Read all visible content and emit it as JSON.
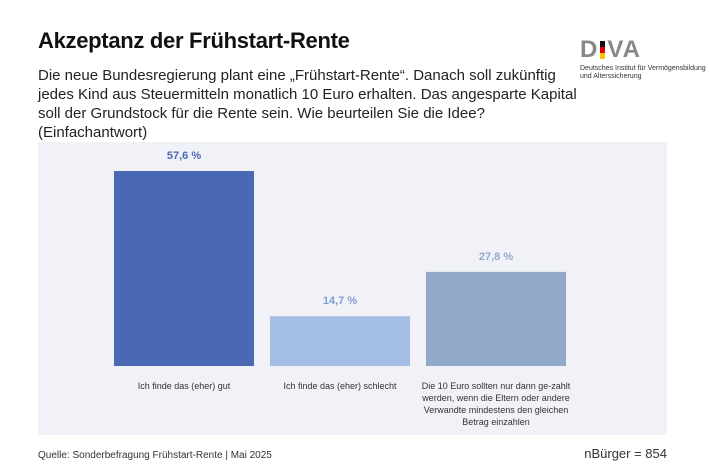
{
  "title": "Akzeptanz der Frühstart-Rente",
  "subtitle": "Die neue Bundesregierung plant eine „Frühstart-Rente“. Danach soll zukünftig jedes Kind aus Steuermitteln monatlich 10 Euro erhalten. Das angesparte Kapital soll der Grundstock für die Rente sein. Wie beurteilen Sie die Idee? (Einfachantwort)",
  "logo": {
    "text": "DIVA",
    "subtitle": "Deutsches Institut für Vermögensbildung und Alterssicherung"
  },
  "source": "Quelle: Sonderbefragung Frühstart-Rente | Mai 2025",
  "sample": "nBürger = 854",
  "chart_data": {
    "type": "bar",
    "categories": [
      "Ich finde das (eher) gut",
      "Ich finde das (eher) schlecht",
      "Die 10 Euro sollten nur dann ge-zahlt werden, wenn die Eltern oder andere Verwandte mindestens den gleichen Betrag einzahlen"
    ],
    "values": [
      57.6,
      14.7,
      27.8
    ],
    "labels": [
      "57,6 %",
      "14,7 %",
      "27,8 %"
    ],
    "colors": [
      "#4a69b3",
      "#a3bde3",
      "#93a9c9"
    ],
    "ylim": [
      0,
      60
    ],
    "grid": false
  }
}
